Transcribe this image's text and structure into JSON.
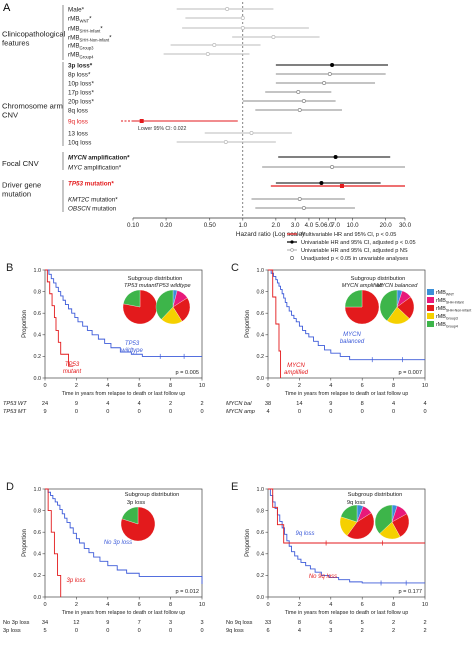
{
  "panel_a": {
    "letter": "A",
    "groups": [
      {
        "label": "Clinicopathological features",
        "lines": [
          "Clinicopathological",
          "features"
        ]
      },
      {
        "label": "Chromosome arm CNV",
        "lines": [
          "Chromosome arm",
          "CNV"
        ]
      },
      {
        "label": "Focal CNV",
        "lines": [
          "Focal CNV"
        ]
      },
      {
        "label": "Driver gene mutation",
        "lines": [
          "Driver gene",
          "mutation"
        ]
      }
    ],
    "ci_note": "Lower 95% CI: 0.022",
    "legend": [
      {
        "label": "Multivariable HR and 95% CI, p < 0.05",
        "color": "#e31a1c"
      },
      {
        "label": "Univariable HR and 95% CI, adjusted p < 0.05",
        "color": "#000000"
      },
      {
        "label": "Univariable HR and 95% CI, adjusted p NS",
        "color": "#bbbbbb"
      },
      {
        "label": "Unadjusted p < 0.05 in unvariable analyses",
        "color": "#666666"
      }
    ]
  },
  "panel_b": {
    "letter": "B",
    "subgroup_title": "Subgroup distribution",
    "pie_labels": [
      "TP53 mutant",
      "TP53 wildtype"
    ],
    "curve_labels": [
      [
        "TP53",
        "wildtype"
      ],
      [
        "TP53",
        "mutant"
      ]
    ],
    "pvalue": "p = 0.005",
    "risk_rows": [
      {
        "label": "TP53 WT",
        "values": [
          "24",
          "9",
          "4",
          "4",
          "2",
          "2"
        ]
      },
      {
        "label": "TP53 MT",
        "values": [
          "9",
          "0",
          "0",
          "0",
          "0",
          "0"
        ]
      }
    ]
  },
  "panel_c": {
    "letter": "C",
    "subgroup_title": "Subgroup distribution",
    "pie_labels": [
      "MYCN amplified",
      "MYCN balanced"
    ],
    "curve_labels": [
      [
        "MYCN",
        "balanced"
      ],
      [
        "MYCN",
        "amplified"
      ]
    ],
    "pvalue": "p = 0.007",
    "risk_rows": [
      {
        "label": "MYCN bal",
        "values": [
          "38",
          "14",
          "9",
          "8",
          "4",
          "4"
        ]
      },
      {
        "label": "MYCN amp",
        "values": [
          "4",
          "0",
          "0",
          "0",
          "0",
          "0"
        ]
      }
    ],
    "legend": [
      {
        "label": "rMB",
        "sub": "WNT",
        "color": "#3a8fd8"
      },
      {
        "label": "rMB",
        "sub": "SHH-Infant",
        "color": "#e8197a"
      },
      {
        "label": "rMB",
        "sub": "SHH-Non-infant",
        "color": "#e31a1c"
      },
      {
        "label": "rMB",
        "sub": "Group3",
        "color": "#f5d000"
      },
      {
        "label": "rMB",
        "sub": "Group4",
        "color": "#3db54a"
      }
    ]
  },
  "panel_d": {
    "letter": "D",
    "subgroup_title": "Subgroup distribution",
    "pie_labels": [
      "3p loss"
    ],
    "curve_labels": [
      [
        "No 3p loss"
      ],
      [
        "3p loss"
      ]
    ],
    "pvalue": "p = 0.012",
    "risk_rows": [
      {
        "label": "No 3p loss",
        "values": [
          "34",
          "12",
          "9",
          "7",
          "3",
          "3"
        ]
      },
      {
        "label": "3p loss",
        "values": [
          "5",
          "0",
          "0",
          "0",
          "0",
          "0"
        ]
      }
    ]
  },
  "panel_e": {
    "letter": "E",
    "subgroup_title": "Subgroup distribution",
    "pie_labels": [
      "9q loss"
    ],
    "curve_labels": [
      [
        "9q loss"
      ],
      [
        "No 9q loss"
      ]
    ],
    "pvalue": "p = 0.177",
    "risk_rows": [
      {
        "label": "No 9q loss",
        "values": [
          "33",
          "8",
          "6",
          "5",
          "2",
          "2"
        ]
      },
      {
        "label": "9q loss",
        "values": [
          "6",
          "4",
          "3",
          "2",
          "2",
          "2"
        ]
      }
    ]
  },
  "km_common": {
    "ylabel": "Proportion",
    "xlabel": "Time in years from relapse to death or last follow up",
    "yticks": [
      "0.0",
      "0.2",
      "0.4",
      "0.6",
      "0.8",
      "1.0"
    ],
    "xticks": [
      "0",
      "2",
      "4",
      "6",
      "8",
      "10"
    ]
  },
  "chart_data": [
    {
      "type": "forest",
      "xlabel": "Hazard ratio (Log scale)",
      "xscale": "log",
      "xlim": [
        0.1,
        30
      ],
      "xticks": [
        "0.10",
        "0.20",
        "0.50",
        "1.0",
        "2.0",
        "3.0",
        "4.0",
        "5.0",
        "6.0",
        "7.0",
        "10.0",
        "20.0",
        "30.0"
      ],
      "rows": [
        {
          "label": "Male*",
          "bold": false,
          "red": false,
          "hr": 0.72,
          "lo": 0.25,
          "hi": 1.9,
          "color": "#bbbbbb",
          "marker": "circle-open"
        },
        {
          "label": "rMB",
          "sub": "WNT",
          "star": "*",
          "bold": false,
          "red": false,
          "hr": 1.0,
          "lo": 0.3,
          "hi": 1.0,
          "color": "#bbbbbb",
          "marker": "circle-open"
        },
        {
          "label": "rMB",
          "sub": "SHH-Infant",
          "star": "*",
          "bold": false,
          "red": false,
          "hr": 1.0,
          "lo": 0.28,
          "hi": 4.0,
          "color": "#bbbbbb",
          "marker": "circle-open"
        },
        {
          "label": "rMB",
          "sub": "SHH-Non-infant",
          "star": "*",
          "bold": false,
          "red": false,
          "hr": 1.9,
          "lo": 0.8,
          "hi": 5.0,
          "color": "#bbbbbb",
          "marker": "circle-open"
        },
        {
          "label": "rMB",
          "sub": "Group3",
          "star": "",
          "bold": false,
          "red": false,
          "hr": 0.55,
          "lo": 0.22,
          "hi": 1.45,
          "color": "#bbbbbb",
          "marker": "circle-open"
        },
        {
          "label": "rMB",
          "sub": "Group4",
          "star": "",
          "bold": false,
          "red": false,
          "hr": 0.48,
          "lo": 0.19,
          "hi": 1.15,
          "color": "#bbbbbb",
          "marker": "circle-open"
        },
        {
          "label": "3p loss*",
          "bold": true,
          "red": false,
          "hr": 6.5,
          "lo": 2.0,
          "hi": 21.0,
          "color": "#000000",
          "marker": "dot"
        },
        {
          "label": "8p loss*",
          "bold": false,
          "red": false,
          "hr": 6.2,
          "lo": 2.0,
          "hi": 20.0,
          "color": "#888888",
          "marker": "circle-open"
        },
        {
          "label": "10p loss*",
          "bold": false,
          "red": false,
          "hr": 5.5,
          "lo": 2.0,
          "hi": 16.0,
          "color": "#888888",
          "marker": "circle-open"
        },
        {
          "label": "17p loss*",
          "bold": false,
          "red": false,
          "hr": 3.2,
          "lo": 1.6,
          "hi": 6.4,
          "color": "#888888",
          "marker": "circle-open"
        },
        {
          "label": "20p loss*",
          "bold": false,
          "red": false,
          "hr": 3.6,
          "lo": 1.0,
          "hi": 7.0,
          "color": "#888888",
          "marker": "circle-open"
        },
        {
          "label": "8q loss",
          "bold": false,
          "red": false,
          "hr": 3.3,
          "lo": 1.3,
          "hi": 8.0,
          "color": "#888888",
          "marker": "circle-open"
        },
        {
          "label": "9q loss",
          "bold": false,
          "red": true,
          "hr": 0.12,
          "lo": 0.022,
          "hi": 0.9,
          "color": "#e31a1c",
          "marker": "square"
        },
        {
          "label": "13 loss",
          "bold": false,
          "red": false,
          "hr": 1.2,
          "lo": 0.45,
          "hi": 2.8,
          "color": "#bbbbbb",
          "marker": "circle-open"
        },
        {
          "label": "10q loss",
          "bold": false,
          "red": false,
          "hr": 0.7,
          "lo": 0.25,
          "hi": 2.0,
          "color": "#bbbbbb",
          "marker": "circle-open"
        },
        {
          "label": "MYCN amplification*",
          "italic_prefix": "MYCN",
          "rest": " amplification*",
          "bold": true,
          "red": false,
          "hr": 7.0,
          "lo": 2.1,
          "hi": 22.0,
          "color": "#000000",
          "marker": "dot"
        },
        {
          "label": "MYC amplification*",
          "italic_prefix": "MYC",
          "rest": " amplification*",
          "bold": false,
          "red": false,
          "hr": 6.5,
          "lo": 1.5,
          "hi": 30.0,
          "color": "#888888",
          "marker": "circle-open"
        },
        {
          "label": "TP53 mutation*",
          "italic_prefix": "TP53",
          "rest": " mutation*",
          "bold": true,
          "red": true,
          "hr": 5.2,
          "lo": 2.0,
          "hi": 18.0,
          "color": "#000000",
          "marker": "dot",
          "multi": {
            "hr": 8.0,
            "lo": 1.8,
            "hi": 30.0
          }
        },
        {
          "label": "KMT2C mutation*",
          "italic_prefix": "KMT2C",
          "rest": " mutation*",
          "bold": false,
          "red": false,
          "hr": 3.3,
          "lo": 1.2,
          "hi": 8.5,
          "color": "#888888",
          "marker": "circle-open"
        },
        {
          "label": "OBSCN mutation",
          "italic_prefix": "OBSCN",
          "rest": " mutation",
          "bold": false,
          "red": false,
          "hr": 3.6,
          "lo": 1.3,
          "hi": 10.5,
          "color": "#888888",
          "marker": "circle-open"
        }
      ]
    },
    {
      "type": "line",
      "panel": "B",
      "xlabel": "Time in years from relapse to death or last follow up",
      "ylabel": "Proportion",
      "xlim": [
        0,
        10
      ],
      "ylim": [
        0,
        1
      ],
      "series": [
        {
          "name": "TP53 wildtype",
          "color": "#3d5bd9",
          "x": [
            0,
            0.25,
            0.4,
            0.55,
            0.7,
            0.85,
            1.0,
            1.15,
            1.3,
            1.5,
            1.7,
            1.9,
            2.1,
            2.4,
            2.7,
            3.0,
            3.4,
            3.8,
            4.2,
            4.8,
            5.5,
            6.2,
            10.0
          ],
          "y": [
            1.0,
            0.96,
            0.92,
            0.88,
            0.84,
            0.8,
            0.76,
            0.72,
            0.68,
            0.64,
            0.6,
            0.56,
            0.52,
            0.48,
            0.44,
            0.4,
            0.36,
            0.32,
            0.28,
            0.24,
            0.22,
            0.2,
            0.2
          ]
        },
        {
          "name": "TP53 mutant",
          "color": "#e31a1c",
          "x": [
            0,
            0.15,
            0.3,
            0.45,
            0.6,
            0.7,
            0.85,
            1.0,
            1.5,
            1.8
          ],
          "y": [
            1.0,
            0.89,
            0.78,
            0.67,
            0.56,
            0.44,
            0.33,
            0.22,
            0.11,
            0.11
          ]
        }
      ],
      "pies": [
        {
          "name": "TP53 mutant",
          "values": [
            0,
            0,
            0.78,
            0,
            0.22
          ]
        },
        {
          "name": "TP53 wildtype",
          "values": [
            0.04,
            0.12,
            0.25,
            0.21,
            0.38
          ]
        }
      ]
    },
    {
      "type": "line",
      "panel": "C",
      "xlabel": "Time in years from relapse to death or last follow up",
      "ylabel": "Proportion",
      "xlim": [
        0,
        10
      ],
      "ylim": [
        0,
        1
      ],
      "series": [
        {
          "name": "MYCN balanced",
          "color": "#3d5bd9",
          "x": [
            0,
            0.2,
            0.35,
            0.5,
            0.6,
            0.7,
            0.8,
            0.9,
            1.0,
            1.1,
            1.2,
            1.35,
            1.5,
            1.65,
            1.8,
            2.0,
            2.2,
            2.4,
            2.6,
            2.9,
            3.2,
            3.6,
            4.0,
            4.6,
            5.2,
            10.0
          ],
          "y": [
            1.0,
            0.97,
            0.94,
            0.91,
            0.88,
            0.85,
            0.82,
            0.78,
            0.74,
            0.7,
            0.66,
            0.62,
            0.58,
            0.55,
            0.52,
            0.48,
            0.44,
            0.41,
            0.38,
            0.34,
            0.3,
            0.26,
            0.23,
            0.2,
            0.17,
            0.17
          ]
        },
        {
          "name": "MYCN amplified",
          "color": "#e31a1c",
          "x": [
            0,
            0.3,
            0.5,
            0.7,
            0.8
          ],
          "y": [
            1.0,
            0.75,
            0.5,
            0.25,
            0.0
          ]
        }
      ],
      "pies": [
        {
          "name": "MYCN amplified",
          "values": [
            0,
            0,
            0.75,
            0,
            0.25
          ]
        },
        {
          "name": "MYCN balanced",
          "values": [
            0.05,
            0.1,
            0.22,
            0.23,
            0.4
          ]
        }
      ]
    },
    {
      "type": "line",
      "panel": "D",
      "xlabel": "Time in years from relapse to death or last follow up",
      "ylabel": "Proportion",
      "xlim": [
        0,
        10
      ],
      "ylim": [
        0,
        1
      ],
      "series": [
        {
          "name": "No 3p loss",
          "color": "#3d5bd9",
          "x": [
            0,
            0.2,
            0.35,
            0.5,
            0.65,
            0.8,
            0.95,
            1.1,
            1.25,
            1.4,
            1.6,
            1.8,
            2.0,
            2.2,
            2.5,
            2.8,
            3.1,
            3.5,
            4.0,
            4.6,
            5.2,
            6.0,
            9.7,
            10.0
          ],
          "y": [
            1.0,
            0.97,
            0.94,
            0.91,
            0.88,
            0.85,
            0.81,
            0.77,
            0.73,
            0.69,
            0.64,
            0.59,
            0.54,
            0.5,
            0.45,
            0.41,
            0.37,
            0.33,
            0.29,
            0.25,
            0.22,
            0.19,
            0.19,
            0.12
          ]
        },
        {
          "name": "3p loss",
          "color": "#e31a1c",
          "x": [
            0,
            0.2,
            0.4,
            0.6,
            0.8,
            1.0
          ],
          "y": [
            1.0,
            0.8,
            0.6,
            0.4,
            0.2,
            0.0
          ]
        }
      ],
      "pies": [
        {
          "name": "3p loss",
          "values": [
            0,
            0,
            0.8,
            0,
            0.2
          ]
        }
      ]
    },
    {
      "type": "line",
      "panel": "E",
      "xlabel": "Time in years from relapse to death or last follow up",
      "ylabel": "Proportion",
      "xlim": [
        0,
        10
      ],
      "ylim": [
        0,
        1
      ],
      "series": [
        {
          "name": "No 9q loss",
          "color": "#3d5bd9",
          "x": [
            0,
            0.15,
            0.3,
            0.45,
            0.6,
            0.75,
            0.9,
            1.05,
            1.2,
            1.35,
            1.5,
            1.7,
            1.9,
            2.1,
            2.4,
            2.7,
            3.0,
            3.4,
            3.9,
            4.5,
            5.2,
            6.0,
            10.0
          ],
          "y": [
            1.0,
            0.94,
            0.88,
            0.82,
            0.76,
            0.7,
            0.64,
            0.58,
            0.52,
            0.47,
            0.42,
            0.38,
            0.35,
            0.32,
            0.29,
            0.26,
            0.23,
            0.2,
            0.18,
            0.16,
            0.14,
            0.13,
            0.13
          ]
        },
        {
          "name": "9q loss",
          "color": "#e31a1c",
          "x": [
            0,
            0.3,
            0.6,
            1.0,
            10.0
          ],
          "y": [
            1.0,
            0.83,
            0.67,
            0.5,
            0.5
          ]
        }
      ],
      "pies": [
        {
          "name": "9q loss",
          "values": [
            0.06,
            0.1,
            0.44,
            0.2,
            0.2
          ]
        },
        {
          "name": "No 9q loss",
          "values": [
            0.05,
            0.12,
            0.25,
            0.21,
            0.37
          ]
        }
      ]
    }
  ]
}
